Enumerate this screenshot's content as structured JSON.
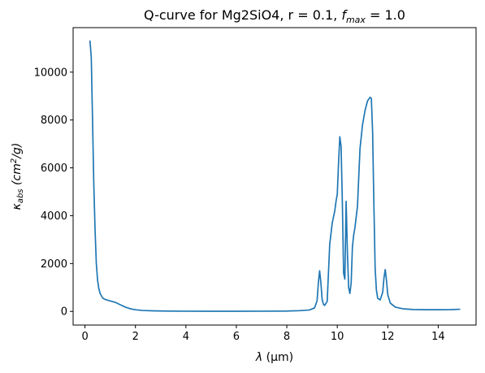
{
  "chart_data": {
    "type": "line",
    "title_main": "Q-curve for Mg2SiO4, r = 0.1, ",
    "title_sym": "f",
    "title_sub": "max",
    "title_rest": " = 1.0",
    "xlabel_sym": "λ",
    "xlabel_rest": " (μm)",
    "ylabel_sym": "κ",
    "ylabel_sub": "abs",
    "ylabel_unit": " (cm",
    "ylabel_sup": "2",
    "ylabel_end": "/g)",
    "xlim": [
      -0.47,
      15.5
    ],
    "ylim": [
      -570,
      11860
    ],
    "xticks": [
      {
        "value": 0,
        "label": "0"
      },
      {
        "value": 2,
        "label": "2"
      },
      {
        "value": 4,
        "label": "4"
      },
      {
        "value": 6,
        "label": "6"
      },
      {
        "value": 8,
        "label": "8"
      },
      {
        "value": 10,
        "label": "10"
      },
      {
        "value": 12,
        "label": "12"
      },
      {
        "value": 14,
        "label": "14"
      }
    ],
    "yticks": [
      {
        "value": 0,
        "label": "0"
      },
      {
        "value": 2000,
        "label": "2000"
      },
      {
        "value": 4000,
        "label": "4000"
      },
      {
        "value": 6000,
        "label": "6000"
      },
      {
        "value": 8000,
        "label": "8000"
      },
      {
        "value": 10000,
        "label": "10000"
      }
    ],
    "grid": false,
    "series": [
      {
        "color": "#1f77b4",
        "x": [
          0.2,
          0.25,
          0.3,
          0.35,
          0.4,
          0.45,
          0.5,
          0.55,
          0.6,
          0.7,
          0.8,
          0.9,
          1.0,
          1.2,
          1.4,
          1.6,
          1.8,
          2.0,
          2.3,
          2.7,
          3.2,
          4.0,
          5.0,
          6.0,
          7.0,
          8.0,
          8.5,
          8.9,
          9.1,
          9.2,
          9.25,
          9.3,
          9.35,
          9.4,
          9.45,
          9.5,
          9.6,
          9.7,
          9.8,
          9.9,
          9.95,
          10.0,
          10.05,
          10.1,
          10.15,
          10.2,
          10.25,
          10.3,
          10.35,
          10.4,
          10.45,
          10.5,
          10.55,
          10.6,
          10.65,
          10.7,
          10.8,
          10.9,
          11.0,
          11.1,
          11.2,
          11.3,
          11.35,
          11.4,
          11.45,
          11.5,
          11.55,
          11.6,
          11.7,
          11.8,
          11.85,
          11.9,
          11.95,
          12.0,
          12.1,
          12.3,
          12.6,
          13.0,
          13.5,
          14.0,
          14.5,
          14.85
        ],
        "y": [
          11300,
          10600,
          8000,
          5300,
          3400,
          2000,
          1300,
          950,
          750,
          560,
          500,
          470,
          440,
          380,
          280,
          180,
          110,
          70,
          40,
          25,
          15,
          10,
          8,
          8,
          9,
          15,
          30,
          60,
          150,
          450,
          1200,
          1700,
          1200,
          500,
          300,
          250,
          420,
          2800,
          3700,
          4200,
          4600,
          4900,
          6200,
          7300,
          6900,
          4600,
          1600,
          1350,
          4600,
          2500,
          1000,
          750,
          1200,
          2700,
          3200,
          3500,
          4400,
          6800,
          7800,
          8400,
          8800,
          8950,
          8900,
          7500,
          4500,
          1800,
          900,
          550,
          480,
          800,
          1400,
          1750,
          1300,
          700,
          350,
          180,
          110,
          80,
          70,
          70,
          75,
          90
        ]
      }
    ]
  }
}
